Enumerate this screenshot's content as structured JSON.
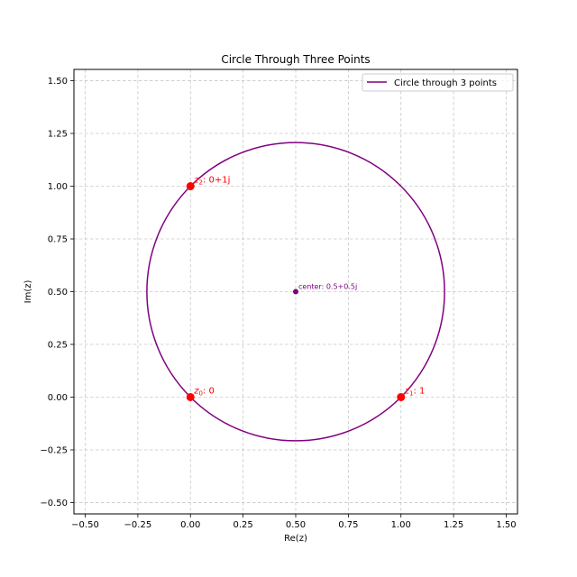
{
  "chart_data": {
    "type": "scatter",
    "title": "Circle Through Three Points",
    "xlabel": "Re(z)",
    "ylabel": "Im(z)",
    "xlim": [
      -0.5536,
      1.5536
    ],
    "ylim": [
      -0.5536,
      1.5536
    ],
    "xticks": [
      -0.5,
      -0.25,
      0.0,
      0.25,
      0.5,
      0.75,
      1.0,
      1.25,
      1.5
    ],
    "yticks": [
      -0.5,
      -0.25,
      0.0,
      0.25,
      0.5,
      0.75,
      1.0,
      1.25,
      1.5
    ],
    "xtick_labels": [
      "−0.50",
      "−0.25",
      "0.00",
      "0.25",
      "0.50",
      "0.75",
      "1.00",
      "1.25",
      "1.50"
    ],
    "ytick_labels": [
      "−0.50",
      "−0.25",
      "0.00",
      "0.25",
      "0.50",
      "0.75",
      "1.00",
      "1.25",
      "1.50"
    ],
    "grid": true,
    "legend_position": "top-right",
    "circle": {
      "label": "Circle through 3 points",
      "center": [
        0.5,
        0.5
      ],
      "radius": 0.7071,
      "color": "#800080"
    },
    "points": [
      {
        "name": "z0",
        "x": 0,
        "y": 0,
        "sub": "0",
        "value_text": ": 0",
        "color": "#ff0000"
      },
      {
        "name": "z1",
        "x": 1,
        "y": 0,
        "sub": "1",
        "value_text": ": 1",
        "color": "#ff0000"
      },
      {
        "name": "z2",
        "x": 0,
        "y": 1,
        "sub": "2",
        "value_text": ": 0+1j",
        "color": "#ff0000"
      }
    ],
    "center_point": {
      "x": 0.5,
      "y": 0.5,
      "label": "center: 0.5+0.5j",
      "color": "#800080"
    }
  }
}
